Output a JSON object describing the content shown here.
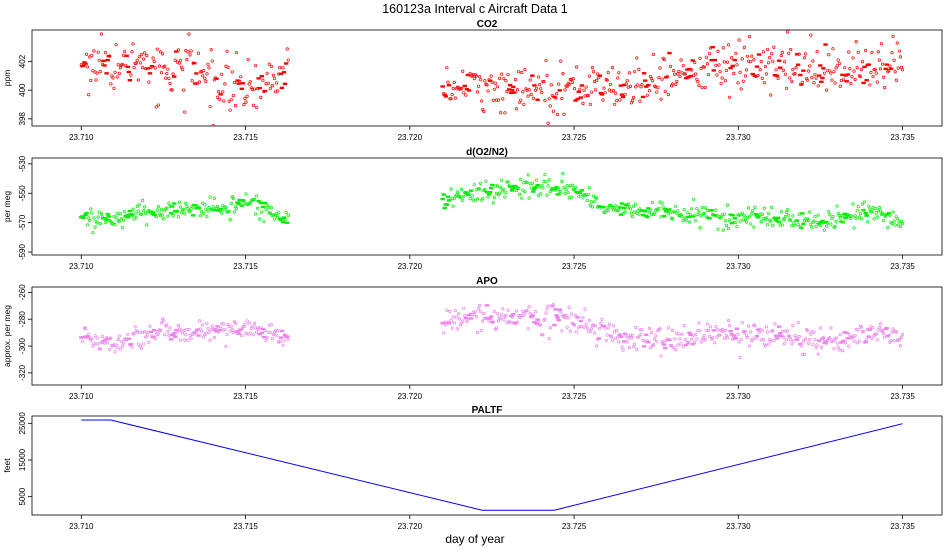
{
  "figure": {
    "title": "160123a   Interval c Aircraft Data 1",
    "xlabel": "day of year"
  },
  "chart_data": [
    {
      "type": "scatter",
      "id": "co2",
      "title": "CO2",
      "ylabel": "ppm",
      "color": "#ff0000",
      "xlim": [
        23.7085,
        23.7362
      ],
      "ylim": [
        397.5,
        404.2
      ],
      "xticks": [
        23.71,
        23.715,
        23.72,
        23.725,
        23.73,
        23.735
      ],
      "xtick_labels": [
        "23.710",
        "23.715",
        "23.720",
        "23.725",
        "23.730",
        "23.735"
      ],
      "yticks": [
        398,
        400,
        402
      ],
      "ytick_labels": [
        "398",
        "400",
        "402"
      ],
      "segments": [
        {
          "x_start": 23.71,
          "x_end": 23.7163,
          "start": 401.7,
          "end": 401.2,
          "trend": [
            [
              0,
              401.8
            ],
            [
              0.2,
              401.7
            ],
            [
              0.45,
              401.4
            ],
            [
              0.6,
              401.0
            ],
            [
              0.75,
              400.2
            ],
            [
              0.88,
              400.3
            ],
            [
              1,
              401.3
            ]
          ],
          "noise": 1.1
        },
        {
          "x_start": 23.721,
          "x_end": 23.735,
          "start": 399.6,
          "end": 401.7,
          "trend": [
            [
              0,
              400.0
            ],
            [
              0.1,
              400.3
            ],
            [
              0.2,
              400.0
            ],
            [
              0.3,
              400.1
            ],
            [
              0.4,
              400.3
            ],
            [
              0.5,
              401.0
            ],
            [
              0.6,
              401.8
            ],
            [
              0.7,
              402.0
            ],
            [
              0.8,
              401.5
            ],
            [
              0.9,
              401.6
            ],
            [
              1,
              401.7
            ]
          ],
          "noise": 1.0
        }
      ]
    },
    {
      "type": "scatter",
      "id": "do2n2",
      "title": "d(O2/N2)",
      "ylabel": "per meg",
      "color": "#00ee00",
      "xlim": [
        23.7085,
        23.7362
      ],
      "ylim": [
        -592,
        -526
      ],
      "xticks": [
        23.71,
        23.715,
        23.72,
        23.725,
        23.73,
        23.735
      ],
      "xtick_labels": [
        "23.710",
        "23.715",
        "23.720",
        "23.725",
        "23.730",
        "23.735"
      ],
      "yticks": [
        -590,
        -570,
        -550,
        -530
      ],
      "ytick_labels": [
        "-590",
        "-570",
        "-550",
        "-530"
      ],
      "segments": [
        {
          "x_start": 23.71,
          "x_end": 23.7163,
          "start": -566,
          "end": -570,
          "trend": [
            [
              0,
              -566
            ],
            [
              0.15,
              -568
            ],
            [
              0.3,
              -563
            ],
            [
              0.5,
              -561
            ],
            [
              0.7,
              -559
            ],
            [
              0.85,
              -555
            ],
            [
              1,
              -570
            ]
          ],
          "noise": 4
        },
        {
          "x_start": 23.721,
          "x_end": 23.735,
          "start": -557,
          "end": -570,
          "trend": [
            [
              0,
              -554
            ],
            [
              0.1,
              -548
            ],
            [
              0.25,
              -546
            ],
            [
              0.3,
              -550
            ],
            [
              0.35,
              -560
            ],
            [
              0.5,
              -563
            ],
            [
              0.6,
              -566
            ],
            [
              0.75,
              -567
            ],
            [
              0.85,
              -569
            ],
            [
              0.92,
              -562
            ],
            [
              1,
              -570
            ]
          ],
          "noise": 4.5
        }
      ]
    },
    {
      "type": "scatter",
      "id": "apo",
      "title": "APO",
      "ylabel": "approx. per meg",
      "color": "#ee82ee",
      "xlim": [
        23.7085,
        23.7362
      ],
      "ylim": [
        -329,
        -256
      ],
      "xticks": [
        23.71,
        23.715,
        23.72,
        23.725,
        23.73,
        23.735
      ],
      "xtick_labels": [
        "23.710",
        "23.715",
        "23.720",
        "23.725",
        "23.730",
        "23.735"
      ],
      "yticks": [
        -320,
        -300,
        -280,
        -260
      ],
      "ytick_labels": [
        "-320",
        "-300",
        "-280",
        "-260"
      ],
      "segments": [
        {
          "x_start": 23.71,
          "x_end": 23.7163,
          "start": -293,
          "end": -295,
          "trend": [
            [
              0,
              -292
            ],
            [
              0.15,
              -297
            ],
            [
              0.3,
              -292
            ],
            [
              0.5,
              -289
            ],
            [
              0.7,
              -288
            ],
            [
              0.85,
              -289
            ],
            [
              1,
              -294
            ]
          ],
          "noise": 5
        },
        {
          "x_start": 23.721,
          "x_end": 23.735,
          "start": -282,
          "end": -292,
          "trend": [
            [
              0,
              -282
            ],
            [
              0.1,
              -278
            ],
            [
              0.25,
              -279
            ],
            [
              0.3,
              -283
            ],
            [
              0.4,
              -295
            ],
            [
              0.55,
              -293
            ],
            [
              0.7,
              -291
            ],
            [
              0.85,
              -297
            ],
            [
              0.95,
              -290
            ],
            [
              1,
              -292
            ]
          ],
          "noise": 6
        }
      ]
    },
    {
      "type": "line",
      "id": "paltf",
      "title": "PALTF",
      "ylabel": "feet",
      "color": "#0000ff",
      "xlim": [
        23.7085,
        23.7362
      ],
      "ylim": [
        0,
        27000
      ],
      "xticks": [
        23.71,
        23.715,
        23.72,
        23.725,
        23.73,
        23.735
      ],
      "xtick_labels": [
        "23.710",
        "23.715",
        "23.720",
        "23.725",
        "23.730",
        "23.735"
      ],
      "yticks": [
        5000,
        15000,
        25000
      ],
      "ytick_labels": [
        "5000",
        "15000",
        "25000"
      ],
      "x": [
        23.71,
        23.7109,
        23.7222,
        23.7244,
        23.735
      ],
      "y": [
        25900,
        25900,
        1300,
        1300,
        24900
      ]
    }
  ]
}
